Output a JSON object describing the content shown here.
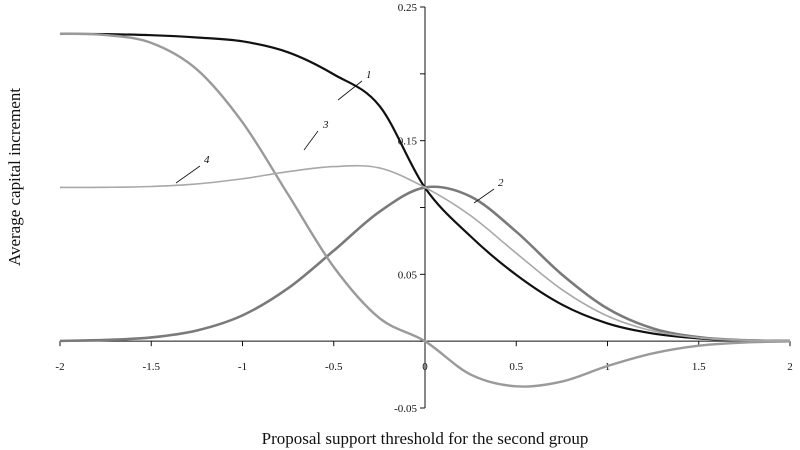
{
  "chart_data": {
    "type": "line",
    "title": "",
    "xlabel": "Proposal support threshold for the second group",
    "ylabel": "Average capital increment",
    "xlim": [
      -2,
      2
    ],
    "ylim": [
      -0.05,
      0.25
    ],
    "grid": false,
    "legend": "none",
    "x_ticks": [
      {
        "value": -2,
        "label": "-2"
      },
      {
        "value": -1.5,
        "label": "-1.5"
      },
      {
        "value": -1,
        "label": "-1"
      },
      {
        "value": -0.5,
        "label": "-0.5"
      },
      {
        "value": 0,
        "label": "0"
      },
      {
        "value": 0.5,
        "label": "0.5"
      },
      {
        "value": 1,
        "label": "1"
      },
      {
        "value": 1.5,
        "label": "1.5"
      },
      {
        "value": 2,
        "label": "2"
      }
    ],
    "y_ticks": [
      {
        "value": 0.25,
        "label": "0.25"
      },
      {
        "value": 0.15,
        "label": "0.15"
      },
      {
        "value": 0.05,
        "label": "0.05"
      },
      {
        "value": -0.05,
        "label": "-0.05"
      }
    ],
    "series": [
      {
        "label": "1",
        "color": "#111111",
        "x": [
          -2,
          -1.75,
          -1.5,
          -1.25,
          -1,
          -0.75,
          -0.5,
          -0.25,
          0,
          0.25,
          0.5,
          0.75,
          1,
          1.25,
          1.5,
          1.75,
          2
        ],
        "y": [
          0.23,
          0.2297,
          0.2289,
          0.2272,
          0.2243,
          0.2161,
          0.1996,
          0.1761,
          0.1148,
          0.0784,
          0.0496,
          0.0274,
          0.0133,
          0.0057,
          0.0021,
          0.0007,
          0.0002
        ]
      },
      {
        "label": "2",
        "color": "#7a7a7a",
        "x": [
          -2,
          -1.75,
          -1.5,
          -1.25,
          -1,
          -0.75,
          -0.5,
          -0.25,
          0,
          0.25,
          0.5,
          0.75,
          1,
          1.25,
          1.5,
          1.75,
          2
        ],
        "y": [
          0.0002,
          0.0009,
          0.0028,
          0.008,
          0.0193,
          0.0396,
          0.0677,
          0.0968,
          0.115,
          0.1082,
          0.0819,
          0.0499,
          0.0244,
          0.0095,
          0.003,
          0.0007,
          0.0001
        ]
      },
      {
        "label": "3",
        "color": "#9a9a9a",
        "x": [
          -2,
          -1.75,
          -1.5,
          -1.25,
          -1,
          -0.75,
          -0.5,
          -0.25,
          0,
          0.25,
          0.5,
          0.75,
          1,
          1.25,
          1.5,
          1.75,
          2
        ],
        "y": [
          0.23,
          0.229,
          0.2232,
          0.2033,
          0.1637,
          0.1097,
          0.0555,
          0.0173,
          0.0,
          -0.025,
          -0.0338,
          -0.0302,
          -0.0186,
          -0.0091,
          -0.0034,
          -0.001,
          -0.0002
        ]
      },
      {
        "label": "4",
        "color": "#a8a8a8",
        "x": [
          -2,
          -1.75,
          -1.5,
          -1.25,
          -1,
          -0.75,
          -0.5,
          -0.25,
          0,
          0.25,
          0.5,
          0.75,
          1,
          1.25,
          1.5,
          1.75,
          2
        ],
        "y": [
          0.115,
          0.1151,
          0.1157,
          0.1176,
          0.1215,
          0.1268,
          0.1306,
          0.1296,
          0.115,
          0.0939,
          0.0658,
          0.0386,
          0.0188,
          0.0076,
          0.0026,
          0.0008,
          0.0002
        ]
      }
    ]
  }
}
